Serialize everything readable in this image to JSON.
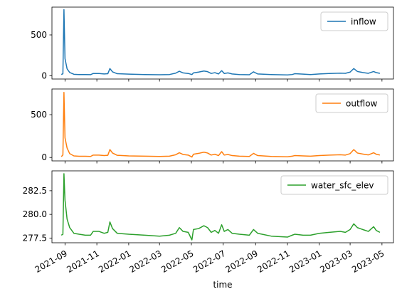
{
  "chart_data": [
    {
      "type": "line",
      "title": "",
      "xlabel": "",
      "ylabel": "",
      "ylim": [
        -40,
        840
      ],
      "yticks": [
        0,
        500
      ],
      "ytick_labels": [
        "0",
        "500"
      ],
      "legend": "top-right",
      "series": [
        {
          "name": "inflow",
          "color": "#1f77b4",
          "points": [
            [
              "2021-08-25",
              15
            ],
            [
              "2021-08-28",
              25
            ],
            [
              "2021-08-30",
              810
            ],
            [
              "2021-09-01",
              210
            ],
            [
              "2021-09-05",
              85
            ],
            [
              "2021-09-10",
              40
            ],
            [
              "2021-09-18",
              18
            ],
            [
              "2021-09-28",
              14
            ],
            [
              "2021-10-10",
              14
            ],
            [
              "2021-10-20",
              13
            ],
            [
              "2021-10-25",
              28
            ],
            [
              "2021-11-05",
              28
            ],
            [
              "2021-11-15",
              22
            ],
            [
              "2021-11-22",
              25
            ],
            [
              "2021-11-26",
              88
            ],
            [
              "2021-12-01",
              48
            ],
            [
              "2021-12-10",
              25
            ],
            [
              "2022-01-01",
              20
            ],
            [
              "2022-02-01",
              15
            ],
            [
              "2022-03-01",
              12
            ],
            [
              "2022-03-20",
              15
            ],
            [
              "2022-04-01",
              32
            ],
            [
              "2022-04-08",
              55
            ],
            [
              "2022-04-15",
              35
            ],
            [
              "2022-04-25",
              28
            ],
            [
              "2022-05-02",
              15
            ],
            [
              "2022-05-05",
              35
            ],
            [
              "2022-05-15",
              45
            ],
            [
              "2022-05-25",
              58
            ],
            [
              "2022-06-01",
              50
            ],
            [
              "2022-06-08",
              28
            ],
            [
              "2022-06-15",
              38
            ],
            [
              "2022-06-22",
              22
            ],
            [
              "2022-06-28",
              62
            ],
            [
              "2022-07-03",
              28
            ],
            [
              "2022-07-10",
              35
            ],
            [
              "2022-07-18",
              22
            ],
            [
              "2022-08-01",
              15
            ],
            [
              "2022-08-20",
              12
            ],
            [
              "2022-08-28",
              48
            ],
            [
              "2022-09-05",
              22
            ],
            [
              "2022-10-01",
              15
            ],
            [
              "2022-11-01",
              10
            ],
            [
              "2022-11-10",
              15
            ],
            [
              "2022-11-15",
              25
            ],
            [
              "2022-12-01",
              20
            ],
            [
              "2022-12-15",
              15
            ],
            [
              "2023-01-01",
              22
            ],
            [
              "2023-01-20",
              28
            ],
            [
              "2023-02-10",
              32
            ],
            [
              "2023-02-20",
              30
            ],
            [
              "2023-03-01",
              45
            ],
            [
              "2023-03-08",
              88
            ],
            [
              "2023-03-15",
              52
            ],
            [
              "2023-03-25",
              40
            ],
            [
              "2023-04-05",
              30
            ],
            [
              "2023-04-15",
              52
            ],
            [
              "2023-04-20",
              38
            ],
            [
              "2023-04-27",
              30
            ]
          ]
        }
      ]
    },
    {
      "type": "line",
      "title": "",
      "xlabel": "",
      "ylabel": "",
      "ylim": [
        -40,
        800
      ],
      "yticks": [
        0,
        500
      ],
      "ytick_labels": [
        "0",
        "500"
      ],
      "legend": "top-right",
      "series": [
        {
          "name": "outflow",
          "color": "#ff7f0e",
          "points": [
            [
              "2021-08-25",
              10
            ],
            [
              "2021-08-28",
              30
            ],
            [
              "2021-08-30",
              760
            ],
            [
              "2021-09-01",
              230
            ],
            [
              "2021-09-05",
              110
            ],
            [
              "2021-09-10",
              45
            ],
            [
              "2021-09-18",
              18
            ],
            [
              "2021-09-28",
              14
            ],
            [
              "2021-10-10",
              14
            ],
            [
              "2021-10-20",
              12
            ],
            [
              "2021-10-25",
              28
            ],
            [
              "2021-11-05",
              28
            ],
            [
              "2021-11-15",
              22
            ],
            [
              "2021-11-22",
              25
            ],
            [
              "2021-11-26",
              92
            ],
            [
              "2021-12-01",
              52
            ],
            [
              "2021-12-10",
              25
            ],
            [
              "2022-01-01",
              18
            ],
            [
              "2022-02-01",
              15
            ],
            [
              "2022-03-01",
              12
            ],
            [
              "2022-03-20",
              15
            ],
            [
              "2022-04-01",
              32
            ],
            [
              "2022-04-08",
              55
            ],
            [
              "2022-04-15",
              35
            ],
            [
              "2022-04-25",
              28
            ],
            [
              "2022-05-02",
              5
            ],
            [
              "2022-05-05",
              38
            ],
            [
              "2022-05-15",
              48
            ],
            [
              "2022-05-25",
              62
            ],
            [
              "2022-06-01",
              52
            ],
            [
              "2022-06-08",
              28
            ],
            [
              "2022-06-15",
              38
            ],
            [
              "2022-06-22",
              22
            ],
            [
              "2022-06-28",
              68
            ],
            [
              "2022-07-03",
              28
            ],
            [
              "2022-07-10",
              35
            ],
            [
              "2022-07-18",
              22
            ],
            [
              "2022-08-01",
              15
            ],
            [
              "2022-08-20",
              12
            ],
            [
              "2022-08-28",
              48
            ],
            [
              "2022-09-05",
              22
            ],
            [
              "2022-10-01",
              12
            ],
            [
              "2022-11-01",
              8
            ],
            [
              "2022-11-10",
              15
            ],
            [
              "2022-11-15",
              22
            ],
            [
              "2022-12-01",
              18
            ],
            [
              "2022-12-15",
              15
            ],
            [
              "2023-01-01",
              22
            ],
            [
              "2023-01-20",
              28
            ],
            [
              "2023-02-10",
              32
            ],
            [
              "2023-02-20",
              28
            ],
            [
              "2023-03-01",
              45
            ],
            [
              "2023-03-08",
              92
            ],
            [
              "2023-03-15",
              52
            ],
            [
              "2023-03-25",
              40
            ],
            [
              "2023-04-05",
              30
            ],
            [
              "2023-04-15",
              55
            ],
            [
              "2023-04-20",
              38
            ],
            [
              "2023-04-27",
              28
            ]
          ]
        }
      ]
    },
    {
      "type": "line",
      "title": "",
      "xlabel": "time",
      "ylabel": "",
      "ylim": [
        277.0,
        284.6
      ],
      "yticks": [
        277.5,
        280.0,
        282.5
      ],
      "ytick_labels": [
        "277.5",
        "280.0",
        "282.5"
      ],
      "xticks": [
        "2021-09-01",
        "2021-11-01",
        "2022-01-01",
        "2022-03-01",
        "2022-05-01",
        "2022-07-01",
        "2022-09-01",
        "2022-11-01",
        "2023-01-01",
        "2023-03-01",
        "2023-05-01"
      ],
      "xtick_labels": [
        "2021-09",
        "2021-11",
        "2022-01",
        "2022-03",
        "2022-05",
        "2022-07",
        "2022-09",
        "2022-11",
        "2023-01",
        "2023-03",
        "2023-05"
      ],
      "legend": "top-right",
      "series": [
        {
          "name": "water_sfc_elev",
          "color": "#2ca02c",
          "points": [
            [
              "2021-08-25",
              277.8
            ],
            [
              "2021-08-28",
              277.9
            ],
            [
              "2021-08-30",
              284.3
            ],
            [
              "2021-09-01",
              281.5
            ],
            [
              "2021-09-05",
              279.5
            ],
            [
              "2021-09-10",
              278.6
            ],
            [
              "2021-09-18",
              278.0
            ],
            [
              "2021-09-28",
              277.9
            ],
            [
              "2021-10-10",
              277.8
            ],
            [
              "2021-10-20",
              277.8
            ],
            [
              "2021-10-25",
              278.2
            ],
            [
              "2021-11-05",
              278.2
            ],
            [
              "2021-11-15",
              278.0
            ],
            [
              "2021-11-22",
              278.1
            ],
            [
              "2021-11-26",
              279.2
            ],
            [
              "2021-12-01",
              278.5
            ],
            [
              "2021-12-10",
              278.0
            ],
            [
              "2022-01-01",
              277.9
            ],
            [
              "2022-02-01",
              277.8
            ],
            [
              "2022-03-01",
              277.7
            ],
            [
              "2022-03-20",
              277.8
            ],
            [
              "2022-04-01",
              278.0
            ],
            [
              "2022-04-08",
              278.6
            ],
            [
              "2022-04-15",
              278.2
            ],
            [
              "2022-04-25",
              278.1
            ],
            [
              "2022-05-02",
              277.3
            ],
            [
              "2022-05-05",
              278.4
            ],
            [
              "2022-05-15",
              278.5
            ],
            [
              "2022-05-25",
              278.8
            ],
            [
              "2022-06-01",
              278.6
            ],
            [
              "2022-06-08",
              278.1
            ],
            [
              "2022-06-15",
              278.3
            ],
            [
              "2022-06-22",
              278.0
            ],
            [
              "2022-06-28",
              278.9
            ],
            [
              "2022-07-03",
              278.2
            ],
            [
              "2022-07-10",
              278.4
            ],
            [
              "2022-07-18",
              278.0
            ],
            [
              "2022-08-01",
              277.9
            ],
            [
              "2022-08-20",
              277.8
            ],
            [
              "2022-08-28",
              278.4
            ],
            [
              "2022-09-05",
              278.0
            ],
            [
              "2022-10-01",
              277.7
            ],
            [
              "2022-11-01",
              277.6
            ],
            [
              "2022-11-10",
              277.8
            ],
            [
              "2022-11-15",
              277.9
            ],
            [
              "2022-12-01",
              277.8
            ],
            [
              "2022-12-15",
              277.8
            ],
            [
              "2023-01-01",
              278.0
            ],
            [
              "2023-01-20",
              278.1
            ],
            [
              "2023-02-10",
              278.2
            ],
            [
              "2023-02-20",
              278.1
            ],
            [
              "2023-03-01",
              278.4
            ],
            [
              "2023-03-08",
              279.0
            ],
            [
              "2023-03-15",
              278.6
            ],
            [
              "2023-03-25",
              278.4
            ],
            [
              "2023-04-05",
              278.2
            ],
            [
              "2023-04-15",
              278.7
            ],
            [
              "2023-04-20",
              278.3
            ],
            [
              "2023-04-27",
              278.1
            ]
          ]
        }
      ]
    }
  ]
}
